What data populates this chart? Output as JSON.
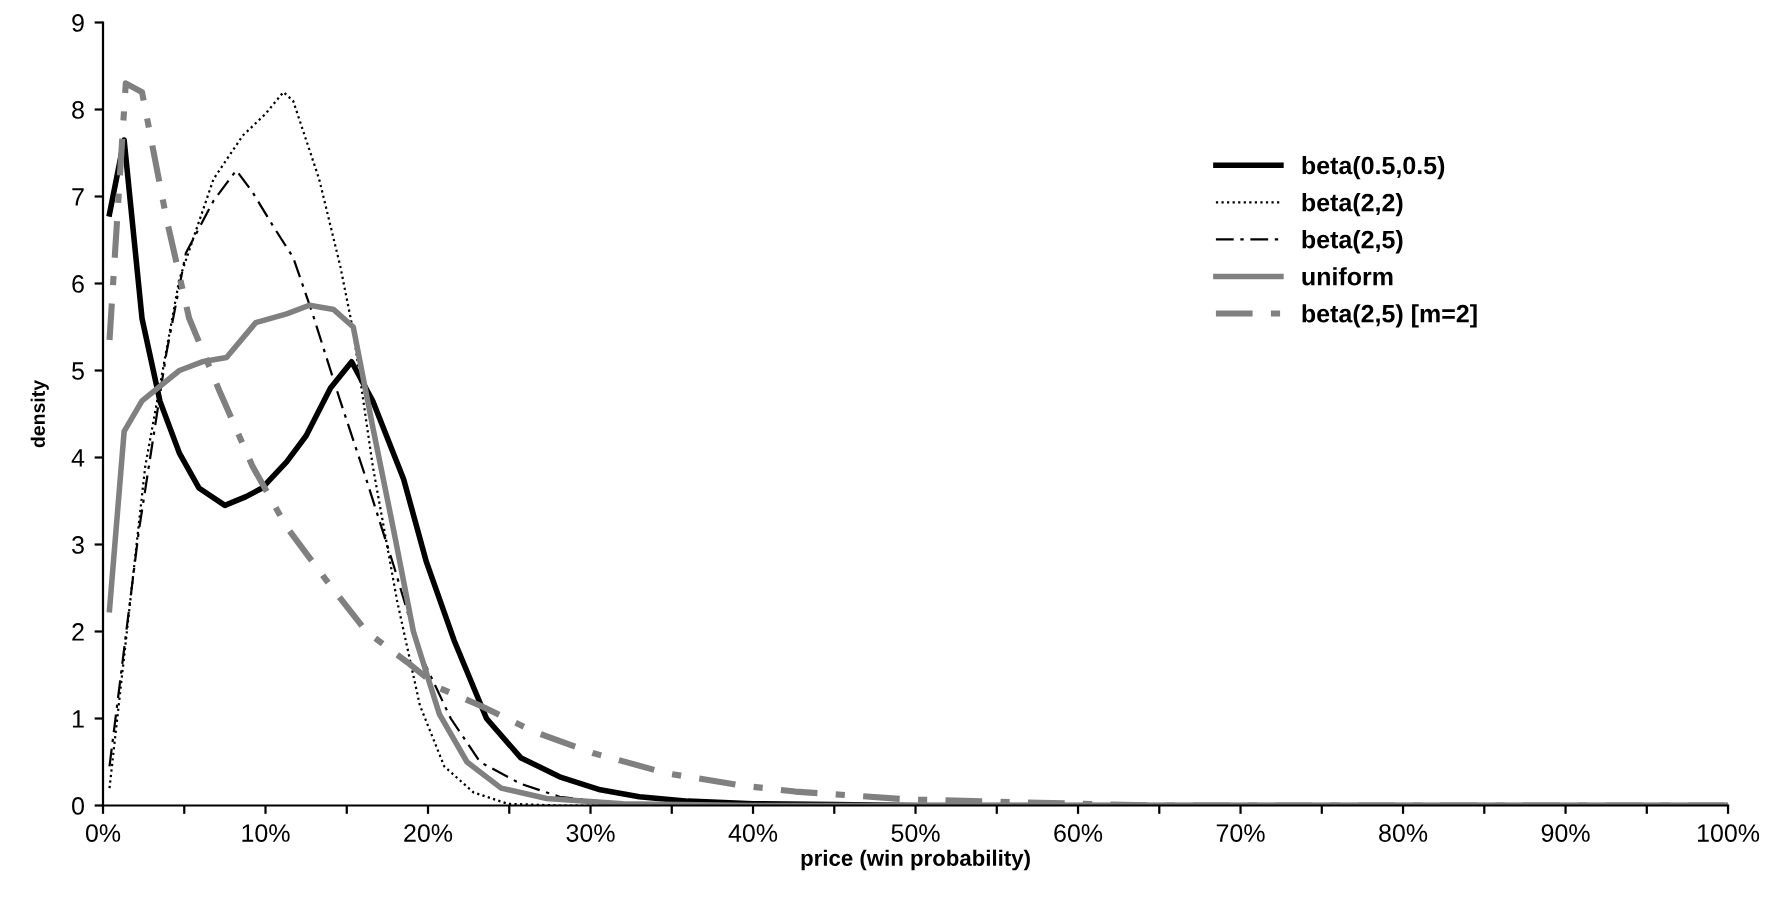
{
  "chart_data": {
    "type": "line",
    "xlabel": "price (win probability)",
    "ylabel": "density",
    "xlim": [
      0,
      100
    ],
    "ylim": [
      0,
      9
    ],
    "xticks": [
      {
        "value": 0,
        "label": "0%"
      },
      {
        "value": 5,
        "label": null
      },
      {
        "value": 10,
        "label": "10%"
      },
      {
        "value": 15,
        "label": null
      },
      {
        "value": 20,
        "label": "20%"
      },
      {
        "value": 25,
        "label": null
      },
      {
        "value": 30,
        "label": "30%"
      },
      {
        "value": 35,
        "label": null
      },
      {
        "value": 40,
        "label": "40%"
      },
      {
        "value": 45,
        "label": null
      },
      {
        "value": 50,
        "label": "50%"
      },
      {
        "value": 55,
        "label": null
      },
      {
        "value": 60,
        "label": "60%"
      },
      {
        "value": 65,
        "label": null
      },
      {
        "value": 70,
        "label": "70%"
      },
      {
        "value": 75,
        "label": null
      },
      {
        "value": 80,
        "label": "80%"
      },
      {
        "value": 85,
        "label": null
      },
      {
        "value": 90,
        "label": "90%"
      },
      {
        "value": 95,
        "label": null
      },
      {
        "value": 100,
        "label": "100%"
      }
    ],
    "yticks": [
      0,
      1,
      2,
      3,
      4,
      5,
      6,
      7,
      8,
      9
    ],
    "grid": false,
    "legend": "right",
    "marker": "none",
    "series": [
      {
        "name": "beta(0.5,0.5)",
        "color": "#000000",
        "line_style": "solid",
        "x": [
          0.4,
          1.3,
          2.4,
          3.5,
          4.7,
          5.9,
          7.5,
          8.8,
          9.8,
          11.3,
          12.5,
          14.0,
          15.3,
          16.6,
          18.5,
          19.9,
          21.6,
          23.6,
          25.7,
          28.1,
          30.6,
          33,
          36,
          40,
          45,
          50,
          60,
          70,
          80,
          90,
          100
        ],
        "values": [
          6.8,
          7.65,
          5.6,
          4.65,
          4.05,
          3.65,
          3.45,
          3.55,
          3.65,
          3.95,
          4.25,
          4.8,
          5.1,
          4.65,
          3.75,
          2.8,
          1.9,
          1.0,
          0.55,
          0.33,
          0.18,
          0.1,
          0.05,
          0.02,
          0.01,
          0,
          0,
          0,
          0,
          0,
          0
        ]
      },
      {
        "name": "beta(2,2)",
        "color": "#000000",
        "line_style": "dotted",
        "x": [
          0.4,
          2.6,
          4.7,
          6.8,
          8.6,
          10.0,
          11.1,
          11.7,
          13.3,
          14.6,
          15.4,
          16.6,
          18.1,
          19.5,
          21.0,
          22.8,
          24.9,
          28,
          35,
          50,
          70,
          100
        ],
        "values": [
          0.2,
          3.9,
          6.05,
          7.2,
          7.7,
          7.95,
          8.2,
          8.1,
          7.2,
          6.2,
          5.45,
          3.9,
          2.35,
          1.15,
          0.45,
          0.15,
          0.02,
          0,
          0,
          0,
          0,
          0
        ]
      },
      {
        "name": "beta(2,5)",
        "color": "#000000",
        "line_style": "dashdot",
        "x": [
          0.4,
          2.2,
          3.9,
          5.1,
          6.8,
          8.2,
          9.2,
          10.5,
          11.7,
          12.9,
          14.6,
          16.2,
          17.9,
          19.5,
          21.4,
          23.2,
          25.7,
          28.1,
          32,
          40,
          50,
          70,
          100
        ],
        "values": [
          0.45,
          3.15,
          5.2,
          6.35,
          6.95,
          7.3,
          7.05,
          6.65,
          6.3,
          5.65,
          4.65,
          3.75,
          2.75,
          1.75,
          1.0,
          0.5,
          0.25,
          0.1,
          0.02,
          0,
          0,
          0,
          0
        ]
      },
      {
        "name": "uniform",
        "color": "#808080",
        "line_style": "solid",
        "x": [
          0.4,
          1.3,
          2.4,
          4.7,
          6.1,
          7.6,
          9.4,
          11.3,
          12.7,
          14.2,
          15.4,
          16.6,
          17.9,
          19.1,
          20.7,
          22.4,
          24.5,
          27.3,
          32,
          40,
          50,
          70,
          100
        ],
        "values": [
          2.25,
          4.3,
          4.65,
          5.0,
          5.1,
          5.15,
          5.55,
          5.65,
          5.75,
          5.7,
          5.5,
          4.35,
          3.15,
          2.0,
          1.05,
          0.5,
          0.2,
          0.08,
          0.02,
          0,
          0,
          0,
          0
        ]
      },
      {
        "name": "beta(2,5) [m=2]",
        "color": "#808080",
        "line_style": "dashdot",
        "x": [
          0.4,
          1.4,
          2.4,
          3.9,
          5.3,
          7.2,
          9.2,
          11.3,
          13.7,
          16.2,
          18.7,
          20.7,
          23.2,
          26.5,
          30.2,
          34.7,
          39.3,
          42.6,
          49.5,
          60,
          65,
          70,
          80,
          90,
          100
        ],
        "values": [
          5.35,
          8.3,
          8.2,
          6.75,
          5.6,
          4.75,
          3.9,
          3.2,
          2.6,
          2.0,
          1.65,
          1.35,
          1.15,
          0.85,
          0.6,
          0.37,
          0.23,
          0.16,
          0.07,
          0.02,
          0,
          0,
          0,
          0,
          0
        ]
      }
    ]
  }
}
